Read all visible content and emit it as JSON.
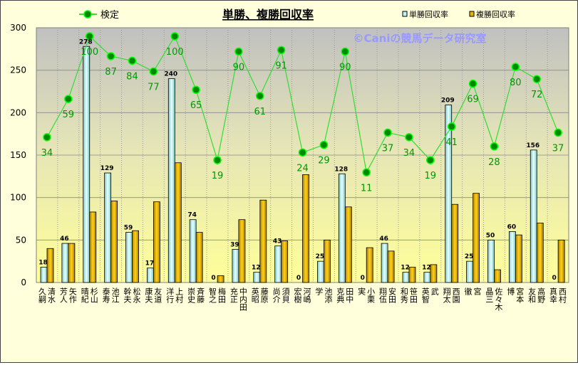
{
  "chart_data": {
    "type": "bar",
    "title": "単勝、複勝回収率",
    "watermark": "©Caniの競馬データ研究室",
    "ylim": [
      0,
      300
    ],
    "yticks": [
      0,
      50,
      100,
      150,
      200,
      250,
      300
    ],
    "y2lim": [
      -61,
      105.6
    ],
    "grid": true,
    "legend_placement": "top",
    "categories": [
      "清水 久嗣",
      "矢作 芳人",
      "杉山 晴紀",
      "池江 泰寿",
      "松永 幹夫",
      "友道 康夫",
      "上村 洋行",
      "斉藤 崇史",
      "梅田 智之",
      "中内田 充正",
      "藤原 英昭",
      "須貝 尚介",
      "河嶋 宏樹",
      "池添 学",
      "田中 克典",
      "小栗 実",
      "安田 翔伍",
      "笹田 和秀",
      "武 英智",
      "西園 翔太",
      "宮 徹",
      "佐々木 晶三",
      "宮本 博",
      "高野 友和",
      "西村 真幸"
    ],
    "series": [
      {
        "name": "単勝回収率",
        "type": "bar",
        "color": "#bff4f4",
        "labeled": true,
        "values": [
          18,
          46,
          278,
          129,
          59,
          17,
          240,
          74,
          0,
          39,
          12,
          43,
          0,
          25,
          128,
          0,
          46,
          12,
          12,
          209,
          25,
          50,
          60,
          156,
          0
        ]
      },
      {
        "name": "複勝回収率",
        "type": "bar",
        "color": "#e8b400",
        "labeled": false,
        "values": [
          40,
          46,
          83,
          96,
          61,
          95,
          141,
          59,
          8,
          74,
          97,
          49,
          127,
          50,
          89,
          41,
          37,
          18,
          21,
          92,
          105,
          15,
          56,
          70,
          50
        ]
      },
      {
        "name": "検定",
        "type": "line",
        "axis": "secondary",
        "color": "#00cc00",
        "labeled": true,
        "values": [
          34,
          59,
          100,
          87,
          84,
          77,
          100,
          65,
          19,
          90,
          61,
          91,
          24,
          29,
          90,
          11,
          37,
          34,
          19,
          41,
          69,
          28,
          80,
          72,
          37
        ]
      }
    ]
  }
}
